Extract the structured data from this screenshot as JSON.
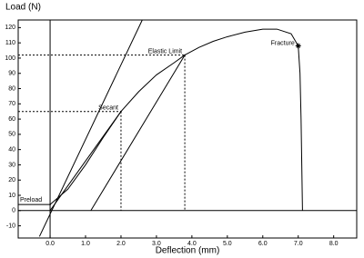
{
  "chart_data": {
    "type": "line",
    "x_label": "Deflection (mm)",
    "y_label": "Load (N)",
    "xlim": [
      -0.9,
      8.65
    ],
    "ylim": [
      -18,
      125
    ],
    "xticks": [
      {
        "value": 0,
        "label": "0.0"
      },
      {
        "value": 1,
        "label": "1.0"
      },
      {
        "value": 2,
        "label": "2.0"
      },
      {
        "value": 3,
        "label": "3.0"
      },
      {
        "value": 4,
        "label": "4.0"
      },
      {
        "value": 5,
        "label": "5.0"
      },
      {
        "value": 6,
        "label": "6.0"
      },
      {
        "value": 7,
        "label": "7.0"
      },
      {
        "value": 8,
        "label": "8.0"
      }
    ],
    "yticks": [
      -10,
      0,
      10,
      20,
      30,
      40,
      50,
      60,
      70,
      80,
      90,
      100,
      110,
      120
    ],
    "series": [
      {
        "color": "#000000",
        "x": [
          0,
          0.5,
          1,
          1.5,
          2,
          2.5,
          3,
          3.5,
          3.8,
          4.2,
          4.6,
          5,
          5.5,
          6,
          6.4,
          6.8,
          7,
          7.05,
          7.08,
          7.1,
          7.12
        ],
        "values": [
          4,
          14,
          30,
          48,
          65,
          78,
          89,
          97,
          102,
          107,
          111,
          114,
          117,
          119,
          119,
          116,
          108,
          90,
          60,
          30,
          0
        ]
      },
      {
        "color": "#000000",
        "x": [
          -0.3,
          2.6
        ],
        "values": [
          -17,
          125
        ]
      },
      {
        "color": "#000000",
        "x": [
          0,
          2
        ],
        "values": [
          0,
          65
        ]
      },
      {
        "color": "#000000",
        "x": [
          1.15,
          3.8
        ],
        "values": [
          0,
          102
        ]
      },
      {
        "color": "#000000",
        "x": [
          -0.9,
          0
        ],
        "values": [
          4,
          4
        ]
      }
    ],
    "annotations": [
      {
        "text": "Fracture",
        "x": 7.0,
        "y": 108,
        "marker": "star"
      },
      {
        "text": "Elastic Limit",
        "x": 3.8,
        "y": 102,
        "guide": "dashed"
      },
      {
        "text": "Secant",
        "x": 2.0,
        "y": 65,
        "guide": "dashed"
      },
      {
        "text": "Preload",
        "x": 0,
        "y": 4
      }
    ]
  }
}
